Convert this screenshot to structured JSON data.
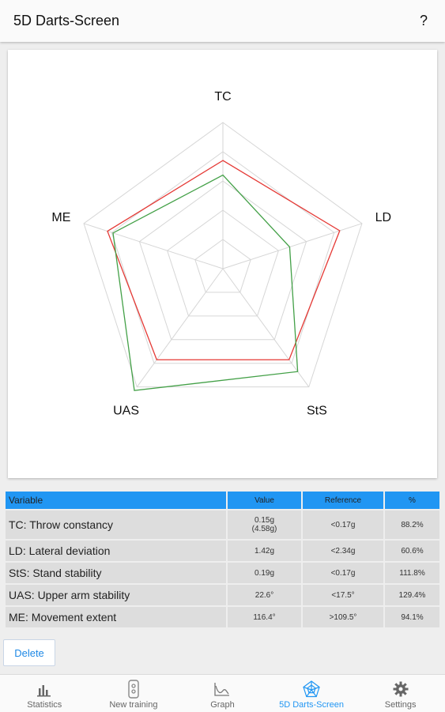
{
  "app_bar": {
    "title": "5D Darts-Screen",
    "help": "?"
  },
  "radar": {
    "axes": [
      "TC",
      "LD",
      "StS",
      "UAS",
      "ME"
    ],
    "levels": 5,
    "series": [
      {
        "color": "#e53935",
        "values": [
          0.74,
          0.84,
          0.77,
          0.77,
          0.83
        ]
      },
      {
        "color": "#43a047",
        "values": [
          0.64,
          0.48,
          0.87,
          1.03,
          0.79
        ]
      }
    ]
  },
  "table": {
    "headers": [
      "Variable",
      "Value",
      "Reference",
      "%"
    ],
    "rows": [
      {
        "variable": "TC: Throw constancy",
        "value": "0.15g",
        "value2": "(4.58g)",
        "reference": "<0.17g",
        "percent": "88.2%"
      },
      {
        "variable": "LD: Lateral deviation",
        "value": "1.42g",
        "value2": "",
        "reference": "<2.34g",
        "percent": "60.6%"
      },
      {
        "variable": "StS: Stand stability",
        "value": "0.19g",
        "value2": "",
        "reference": "<0.17g",
        "percent": "111.8%"
      },
      {
        "variable": "UAS: Upper arm stability",
        "value": "22.6°",
        "value2": "",
        "reference": "<17.5°",
        "percent": "129.4%"
      },
      {
        "variable": "ME: Movement extent",
        "value": "116.4°",
        "value2": "",
        "reference": ">109.5°",
        "percent": "94.1%"
      }
    ]
  },
  "delete_label": "Delete",
  "nav": {
    "active_color": "#2196f3",
    "items": [
      {
        "label": "Statistics",
        "icon": "bar-chart-icon"
      },
      {
        "label": "New training",
        "icon": "dartboard-icon"
      },
      {
        "label": "Graph",
        "icon": "line-graph-icon"
      },
      {
        "label": "5D Darts-Screen",
        "icon": "radar-icon"
      },
      {
        "label": "Settings",
        "icon": "gear-icon"
      }
    ]
  }
}
